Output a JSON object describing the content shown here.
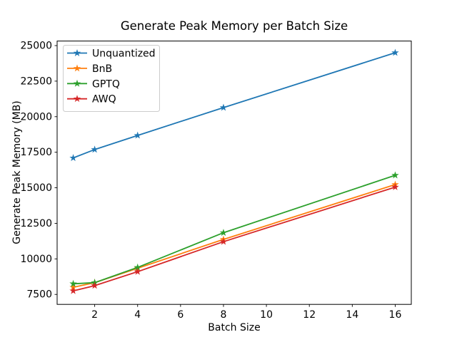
{
  "figure": {
    "background": "#ffffff",
    "text_color": "#000000",
    "axes_edge_color": "#000000",
    "legend_border_color": "#cccccc"
  },
  "chart_data": {
    "type": "line",
    "title": "Generate Peak Memory per Batch Size",
    "xlabel": "Batch Size",
    "ylabel": "Generate Peak Memory (MB)",
    "x": [
      1,
      2,
      4,
      8,
      16
    ],
    "series": [
      {
        "name": "Unquantized",
        "color": "#1f77b4",
        "marker": "star",
        "values": [
          17100,
          17690,
          18680,
          20640,
          24500
        ]
      },
      {
        "name": "BnB",
        "color": "#ff7f0e",
        "marker": "star",
        "values": [
          8000,
          8330,
          9340,
          11370,
          15230
        ]
      },
      {
        "name": "GPTQ",
        "color": "#2ca02c",
        "marker": "star",
        "values": [
          8250,
          8330,
          9400,
          11840,
          15880
        ]
      },
      {
        "name": "AWQ",
        "color": "#d62728",
        "marker": "star",
        "values": [
          7750,
          8120,
          9100,
          11210,
          15050
        ]
      }
    ],
    "xticks": [
      2,
      4,
      6,
      8,
      10,
      12,
      14,
      16
    ],
    "yticks": [
      7500,
      10000,
      12500,
      15000,
      17500,
      20000,
      22500,
      25000
    ],
    "xlim": [
      0.25,
      16.75
    ],
    "ylim": [
      6800,
      25320
    ],
    "grid": false,
    "legend": {
      "position": "upper left",
      "entries": [
        "Unquantized",
        "BnB",
        "GPTQ",
        "AWQ"
      ]
    }
  }
}
